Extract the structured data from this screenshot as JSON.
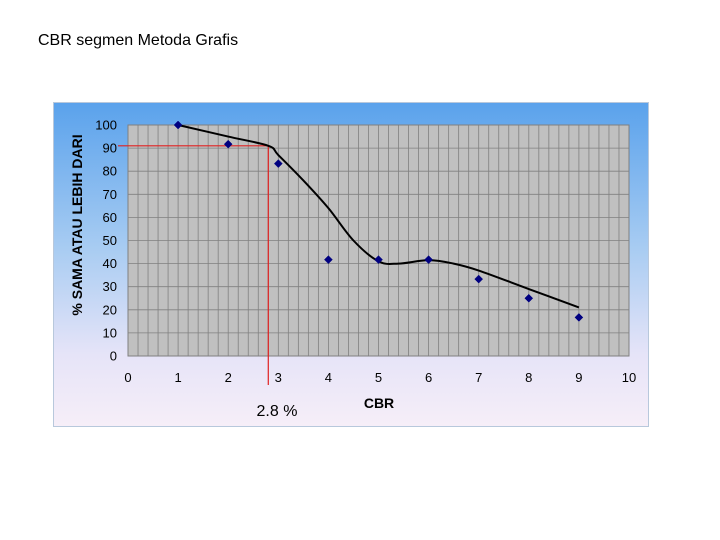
{
  "page": {
    "title": "CBR segmen Metoda Grafis"
  },
  "chart_data": {
    "type": "scatter",
    "title": "",
    "xlabel": "CBR",
    "ylabel": "% SAMA ATAU LEBIH DARI",
    "xlim": [
      0,
      10
    ],
    "ylim": [
      0,
      100
    ],
    "x_ticks": [
      "0",
      "1",
      "2",
      "3",
      "4",
      "5",
      "6",
      "7",
      "8",
      "9",
      "10"
    ],
    "y_ticks": [
      "0",
      "10",
      "20",
      "30",
      "40",
      "50",
      "60",
      "70",
      "80",
      "90",
      "100"
    ],
    "grid": true,
    "legend": "none",
    "series": [
      {
        "kind": "markers",
        "x": [
          1,
          2,
          3,
          4,
          5,
          6,
          7,
          8,
          9
        ],
        "y": [
          100,
          91.7,
          83.3,
          41.7,
          41.7,
          41.7,
          33.3,
          25,
          16.7
        ],
        "color": "#000080"
      },
      {
        "kind": "trendline",
        "x": [
          1,
          2,
          2.8,
          3,
          3.5,
          4,
          4.5,
          5,
          5.4,
          6,
          6.5,
          7,
          8,
          9
        ],
        "y": [
          100,
          95,
          91,
          87,
          76,
          64,
          50,
          41,
          40,
          41.5,
          40,
          37,
          29,
          21
        ],
        "color": "#000000"
      }
    ],
    "reference": {
      "y": 91,
      "x": 2.8,
      "label": "2.8 %",
      "color": "#e02020"
    },
    "plot_background": "#c0c0c0",
    "gridline_color": "#808080"
  }
}
